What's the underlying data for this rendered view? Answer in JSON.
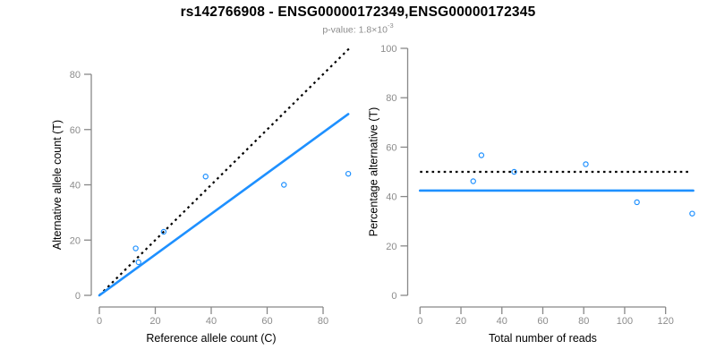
{
  "title": "rs142766908 - ENSG00000172349,ENSG00000172345",
  "subtitle": {
    "prefix": "p-value: ",
    "mantissa": "1.8×10",
    "exponent": "-3"
  },
  "colors": {
    "accent_blue": "#1E90FF",
    "axis_gray": "#888888",
    "tick_label_gray": "#8c8c8c",
    "axis_title_black": "#000000",
    "dotted_line_black": "#000000"
  },
  "chart_data": [
    {
      "panel": "left",
      "type": "scatter",
      "xlabel": "Reference allele count (C)",
      "ylabel": "Alternative allele count (T)",
      "xticks": [
        0,
        20,
        40,
        60,
        80
      ],
      "yticks": [
        0,
        20,
        40,
        60,
        80
      ],
      "xlim": [
        0,
        90
      ],
      "ylim": [
        0,
        90
      ],
      "grid": false,
      "legend": null,
      "points": [
        {
          "x": 13,
          "y": 17
        },
        {
          "x": 14,
          "y": 12
        },
        {
          "x": 23,
          "y": 23
        },
        {
          "x": 38,
          "y": 43
        },
        {
          "x": 66,
          "y": 40
        },
        {
          "x": 89,
          "y": 44
        }
      ],
      "lines": [
        {
          "name": "identity-line",
          "style": "dotted",
          "color": "#000000",
          "x": [
            0,
            90
          ],
          "y": [
            0,
            90
          ]
        },
        {
          "name": "regression-line",
          "style": "solid",
          "color": "#1E90FF",
          "x": [
            0,
            89
          ],
          "y": [
            0,
            65.6
          ]
        }
      ]
    },
    {
      "panel": "right",
      "type": "scatter",
      "xlabel": "Total number of reads",
      "ylabel": "Percentage alternative (T)",
      "xticks": [
        0,
        20,
        40,
        60,
        80,
        100,
        120
      ],
      "yticks": [
        0,
        20,
        40,
        60,
        80,
        100
      ],
      "xlim": [
        0,
        135
      ],
      "ylim": [
        0,
        100
      ],
      "grid": false,
      "legend": null,
      "points": [
        {
          "x": 30,
          "y": 56.7
        },
        {
          "x": 26,
          "y": 46.2
        },
        {
          "x": 46,
          "y": 50
        },
        {
          "x": 81,
          "y": 53.1
        },
        {
          "x": 106,
          "y": 37.7
        },
        {
          "x": 133,
          "y": 33.1
        }
      ],
      "lines": [
        {
          "name": "fifty-percent-line",
          "style": "dotted",
          "color": "#000000",
          "x": [
            0,
            132
          ],
          "y": [
            50,
            50
          ]
        },
        {
          "name": "mean-percentage-line",
          "style": "solid",
          "color": "#1E90FF",
          "x": [
            0,
            133.5
          ],
          "y": [
            42.4,
            42.4
          ]
        }
      ]
    }
  ]
}
